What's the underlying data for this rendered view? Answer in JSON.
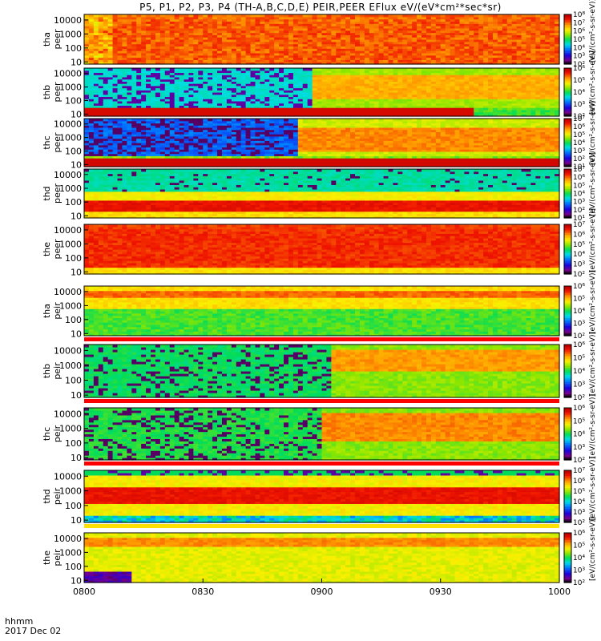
{
  "title": "P5, P1, P2, P3, P4 (TH-A,B,C,D,E) PEIR,PEER EFlux eV/(eV*cm²*sec*sr)",
  "time_label": "hhmm",
  "date_label": "2017 Dec 02",
  "colorbar_unit": "[eV/(cm²-s-sr-eV)]",
  "chart_data": {
    "type": "heatmap",
    "x_ticks": [
      "0800",
      "0830",
      "0900",
      "0930",
      "1000"
    ],
    "x_range": [
      "0800",
      "1000"
    ],
    "y_scale": "log",
    "y_ticks": [
      "10",
      "100",
      "1000",
      "10000"
    ],
    "y_range": [
      7,
      25000
    ],
    "panels": [
      {
        "probe": "tha",
        "product": "peer",
        "cbar_ticks": [
          "10²",
          "10³",
          "10⁴",
          "10⁵",
          "10⁶",
          "10⁷",
          "10⁸"
        ],
        "cbar_range": [
          2,
          8
        ],
        "profile": "ion_hot"
      },
      {
        "probe": "thb",
        "product": "peer",
        "cbar_ticks": [
          "10²",
          "10³",
          "10⁴",
          "10⁵",
          "10⁶"
        ],
        "cbar_range": [
          2,
          6
        ],
        "profile": "thb_peer"
      },
      {
        "probe": "thc",
        "product": "peer",
        "cbar_ticks": [
          "10¹",
          "10²",
          "10³",
          "10⁴",
          "10⁵",
          "10⁶",
          "10⁷"
        ],
        "cbar_range": [
          1,
          7
        ],
        "profile": "thc_peer"
      },
      {
        "probe": "thd",
        "product": "peer",
        "cbar_ticks": [
          "10¹",
          "10²",
          "10³",
          "10⁴",
          "10⁵",
          "10⁶",
          "10⁷"
        ],
        "cbar_range": [
          1,
          7
        ],
        "profile": "thd_peer"
      },
      {
        "probe": "the",
        "product": "peer",
        "cbar_ticks": [
          "10²",
          "10³",
          "10⁴",
          "10⁵",
          "10⁶",
          "10⁷"
        ],
        "cbar_range": [
          2,
          7
        ],
        "profile": "the_peer"
      },
      {
        "probe": "tha",
        "product": "peir",
        "cbar_ticks": [
          "10²",
          "10³",
          "10⁴",
          "10⁵",
          "10⁶"
        ],
        "cbar_range": [
          2,
          6
        ],
        "profile": "tha_peir"
      },
      {
        "probe": "thb",
        "product": "peir",
        "cbar_ticks": [
          "10²",
          "10³",
          "10⁴",
          "10⁵",
          "10⁶"
        ],
        "cbar_range": [
          2,
          6
        ],
        "profile": "thb_peir"
      },
      {
        "probe": "thc",
        "product": "peir",
        "cbar_ticks": [
          "10²",
          "10³",
          "10⁴",
          "10⁵",
          "10⁶"
        ],
        "cbar_range": [
          2,
          6
        ],
        "profile": "thc_peir"
      },
      {
        "probe": "thd",
        "product": "peir",
        "cbar_ticks": [
          "10²",
          "10³",
          "10⁴",
          "10⁵",
          "10⁶",
          "10⁷"
        ],
        "cbar_range": [
          2,
          7
        ],
        "profile": "thd_peir"
      },
      {
        "probe": "the",
        "product": "peir",
        "cbar_ticks": [
          "10²",
          "10³",
          "10⁴",
          "10⁵",
          "10⁶"
        ],
        "cbar_range": [
          2,
          6
        ],
        "profile": "the_peir"
      }
    ]
  }
}
